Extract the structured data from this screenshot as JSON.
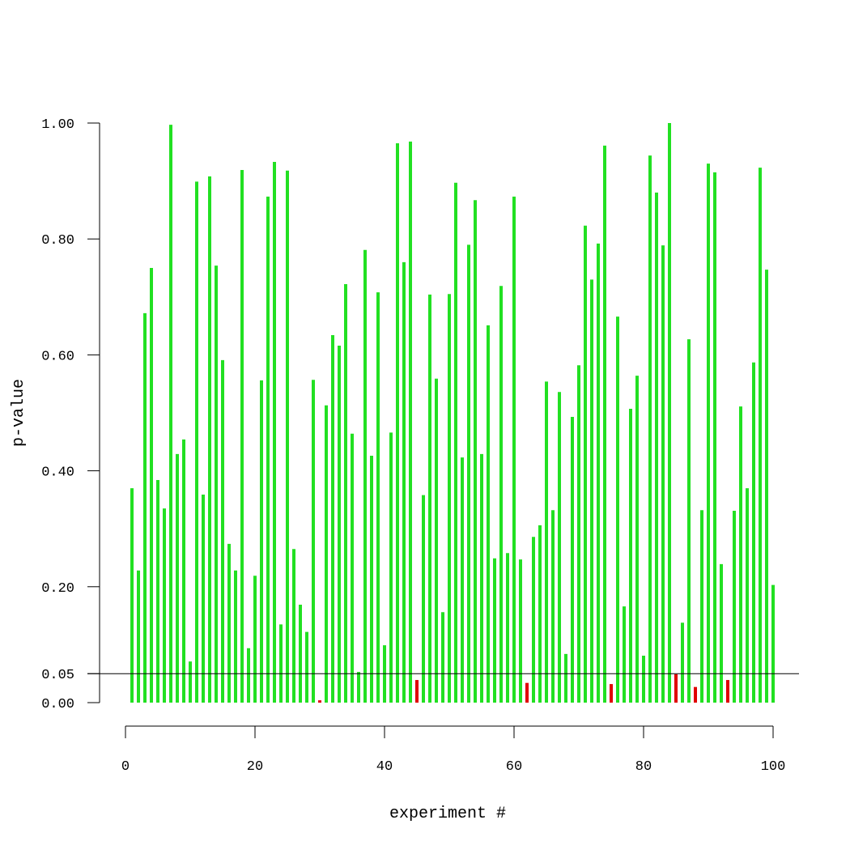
{
  "chart_data": {
    "type": "bar",
    "title": "",
    "xlabel": "experiment #",
    "ylabel": "p-value",
    "xlim": [
      0,
      100
    ],
    "ylim": [
      0,
      1
    ],
    "xticks": [
      "0",
      "20",
      "40",
      "60",
      "80",
      "100"
    ],
    "xtick_values": [
      0,
      20,
      40,
      60,
      80,
      100
    ],
    "yticks": [
      "0.00",
      "0.05",
      "0.20",
      "0.40",
      "0.60",
      "0.80",
      "1.00"
    ],
    "ytick_values": [
      0,
      0.05,
      0.2,
      0.4,
      0.6,
      0.8,
      1.0
    ],
    "threshold": 0.05,
    "grid": false,
    "colors": {
      "above_threshold": "#22e022",
      "below_threshold": "#e00000"
    },
    "x": [
      1,
      2,
      3,
      4,
      5,
      6,
      7,
      8,
      9,
      10,
      11,
      12,
      13,
      14,
      15,
      16,
      17,
      18,
      19,
      20,
      21,
      22,
      23,
      24,
      25,
      26,
      27,
      28,
      29,
      30,
      31,
      32,
      33,
      34,
      35,
      36,
      37,
      38,
      39,
      40,
      41,
      42,
      43,
      44,
      45,
      46,
      47,
      48,
      49,
      50,
      51,
      52,
      53,
      54,
      55,
      56,
      57,
      58,
      59,
      60,
      61,
      62,
      63,
      64,
      65,
      66,
      67,
      68,
      69,
      70,
      71,
      72,
      73,
      74,
      75,
      76,
      77,
      78,
      79,
      80,
      81,
      82,
      83,
      84,
      85,
      86,
      87,
      88,
      89,
      90,
      91,
      92,
      93,
      94,
      95,
      96,
      97,
      98,
      99,
      100
    ],
    "values": [
      0.37,
      0.228,
      0.672,
      0.75,
      0.384,
      0.335,
      0.997,
      0.429,
      0.454,
      0.071,
      0.899,
      0.359,
      0.908,
      0.754,
      0.591,
      0.274,
      0.228,
      0.919,
      0.094,
      0.219,
      0.556,
      0.873,
      0.933,
      0.135,
      0.918,
      0.265,
      0.169,
      0.122,
      0.557,
      0.004,
      0.513,
      0.634,
      0.616,
      0.722,
      0.464,
      0.053,
      0.781,
      0.426,
      0.708,
      0.099,
      0.466,
      0.965,
      0.76,
      0.968,
      0.039,
      0.358,
      0.704,
      0.559,
      0.156,
      0.705,
      0.897,
      0.423,
      0.79,
      0.867,
      0.429,
      0.651,
      0.249,
      0.719,
      0.258,
      0.873,
      0.247,
      0.034,
      0.286,
      0.306,
      0.554,
      0.332,
      0.536,
      0.084,
      0.493,
      0.582,
      0.823,
      0.73,
      0.792,
      0.961,
      0.032,
      0.666,
      0.166,
      0.507,
      0.564,
      0.081,
      0.944,
      0.88,
      0.789,
      1.0,
      0.049,
      0.138,
      0.627,
      0.027,
      0.332,
      0.93,
      0.915,
      0.239,
      0.039,
      0.331,
      0.511,
      0.37,
      0.587,
      0.923,
      0.747,
      0.203
    ]
  }
}
